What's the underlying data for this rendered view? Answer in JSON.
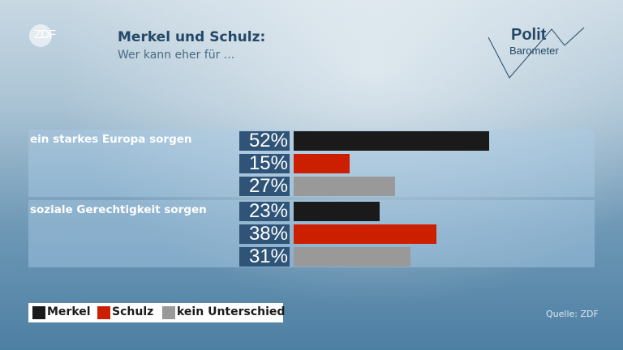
{
  "header": {
    "logo": "ZDF",
    "title": "Merkel und Schulz:",
    "subtitle": "Wer kann eher für ...",
    "brand_line1": "Polit",
    "brand_line2": "Barometer"
  },
  "chart_data": {
    "type": "bar",
    "orientation": "horizontal",
    "title": "Merkel und Schulz:",
    "subtitle": "Wer kann eher für ...",
    "categories": [
      "ein starkes Europa sorgen",
      "soziale Gerechtigkeit sorgen"
    ],
    "series": [
      {
        "name": "Merkel",
        "color": "#1a1a1a",
        "values": [
          52,
          23
        ]
      },
      {
        "name": "Schulz",
        "color": "#cc1f00",
        "values": [
          15,
          38
        ]
      },
      {
        "name": "kein Unterschied",
        "color": "#999999",
        "values": [
          27,
          31
        ]
      }
    ],
    "value_labels": [
      [
        "52%",
        "15%",
        "27%"
      ],
      [
        "23%",
        "38%",
        "31%"
      ]
    ],
    "unit": "%",
    "legend": "bottom-left",
    "grid": false,
    "source": "Quelle: ZDF"
  }
}
